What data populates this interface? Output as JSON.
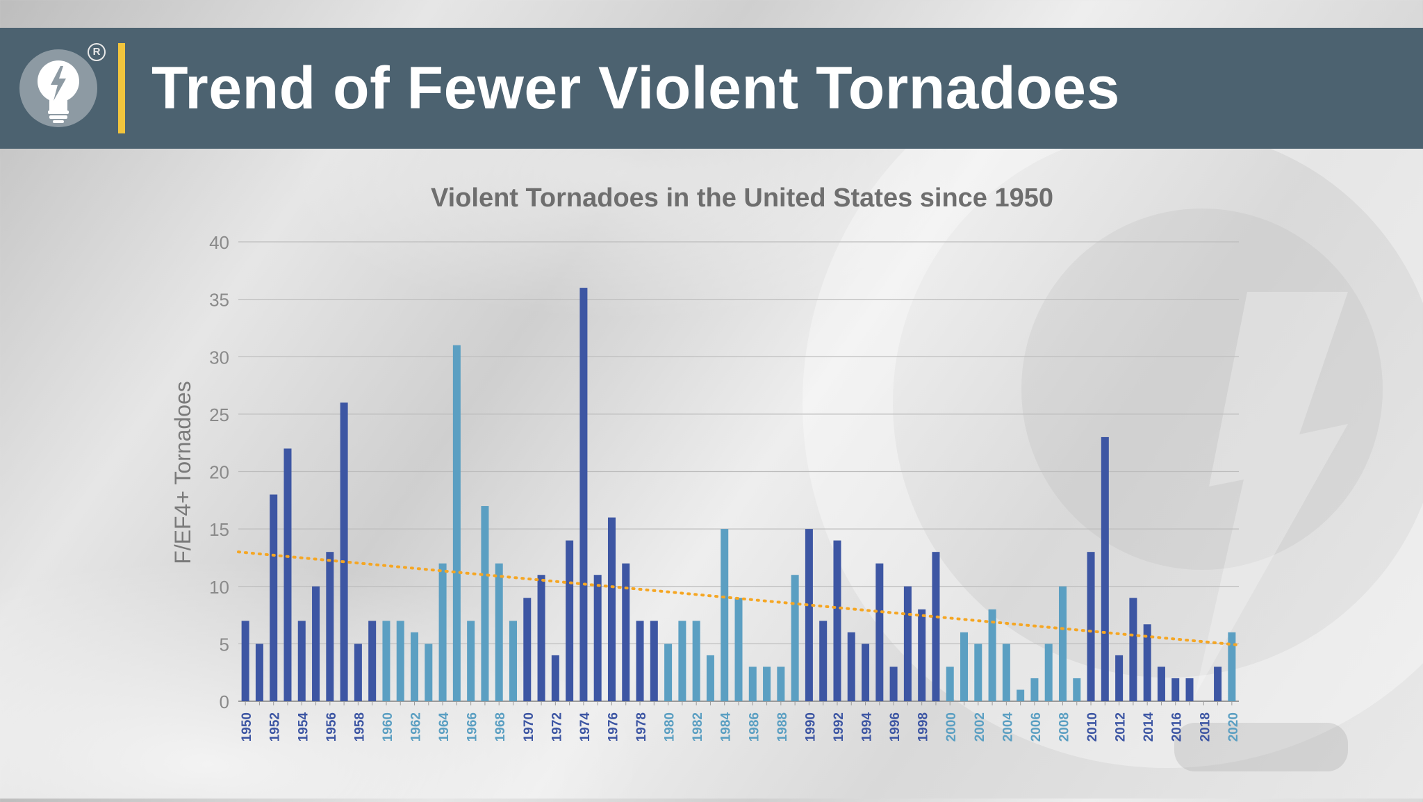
{
  "header": {
    "title": "Trend of Fewer Violent Tornadoes",
    "registered_mark": "R",
    "logo_icon": "lightbulb-bolt-icon",
    "colors": {
      "bar": "#4c6270",
      "accent": "#f2c53d"
    }
  },
  "chart_data": {
    "type": "bar",
    "title": "Violent Tornadoes in the United States since 1950",
    "xlabel": "",
    "ylabel": "F/EF4+ Tornadoes",
    "ylim": [
      0,
      40
    ],
    "yticks": [
      0,
      5,
      10,
      15,
      20,
      25,
      30,
      35,
      40
    ],
    "grid": true,
    "categories": [
      "1950",
      "1951",
      "1952",
      "1953",
      "1954",
      "1955",
      "1956",
      "1957",
      "1958",
      "1959",
      "1960",
      "1961",
      "1962",
      "1963",
      "1964",
      "1965",
      "1966",
      "1967",
      "1968",
      "1969",
      "1970",
      "1971",
      "1972",
      "1973",
      "1974",
      "1975",
      "1976",
      "1977",
      "1978",
      "1979",
      "1980",
      "1981",
      "1982",
      "1983",
      "1984",
      "1985",
      "1986",
      "1987",
      "1988",
      "1989",
      "1990",
      "1991",
      "1992",
      "1993",
      "1994",
      "1995",
      "1996",
      "1997",
      "1998",
      "1999",
      "2000",
      "2001",
      "2002",
      "2003",
      "2004",
      "2005",
      "2006",
      "2007",
      "2008",
      "2009",
      "2010",
      "2011",
      "2012",
      "2013",
      "2014",
      "2015",
      "2016",
      "2017",
      "2018",
      "2019",
      "2020"
    ],
    "tick_labels": [
      "1950",
      "1952",
      "1954",
      "1956",
      "1958",
      "1960",
      "1962",
      "1964",
      "1966",
      "1968",
      "1970",
      "1972",
      "1974",
      "1976",
      "1978",
      "1980",
      "1982",
      "1984",
      "1986",
      "1988",
      "1990",
      "1992",
      "1994",
      "1996",
      "1998",
      "2000",
      "2002",
      "2004",
      "2006",
      "2008",
      "2010",
      "2012",
      "2014",
      "2016",
      "2018",
      "2020"
    ],
    "values": [
      7,
      5,
      18,
      22,
      7,
      10,
      13,
      26,
      5,
      7,
      7,
      7,
      6,
      5,
      12,
      31,
      7,
      17,
      12,
      7,
      9,
      11,
      4,
      14,
      36,
      11,
      16,
      12,
      7,
      7,
      5,
      7,
      7,
      4,
      15,
      9,
      3,
      3,
      3,
      11,
      15,
      7,
      14,
      6,
      5,
      12,
      3,
      10,
      8,
      13,
      3,
      6,
      5,
      8,
      5,
      1,
      2,
      5,
      10,
      2,
      13,
      23,
      4,
      9,
      6.7,
      3,
      2,
      2,
      0,
      3,
      6
    ],
    "decade_colors": {
      "dark": "#3d56a3",
      "light": "#5b9fc2"
    },
    "trendline": {
      "style": "dotted",
      "color": "#f5a623",
      "start": 13,
      "end": 4.9
    }
  }
}
